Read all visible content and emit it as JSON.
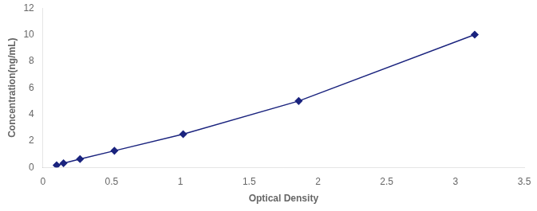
{
  "chart_data": {
    "type": "line",
    "xlabel": "Optical Density",
    "ylabel": "Concentration(ng/mL)",
    "x": [
      0.1,
      0.15,
      0.27,
      0.52,
      1.02,
      1.86,
      3.14
    ],
    "values": [
      0.16,
      0.31,
      0.63,
      1.25,
      2.5,
      5.0,
      10.0
    ],
    "color": "#1a237e",
    "marker": "diamond",
    "xlim": [
      0,
      3.5
    ],
    "ylim": [
      0,
      12
    ],
    "xticks": [
      0,
      0.5,
      1.0,
      1.5,
      2.0,
      2.5,
      3.0,
      3.5
    ],
    "yticks": [
      0,
      2,
      4,
      6,
      8,
      10,
      12
    ],
    "grid": false
  }
}
